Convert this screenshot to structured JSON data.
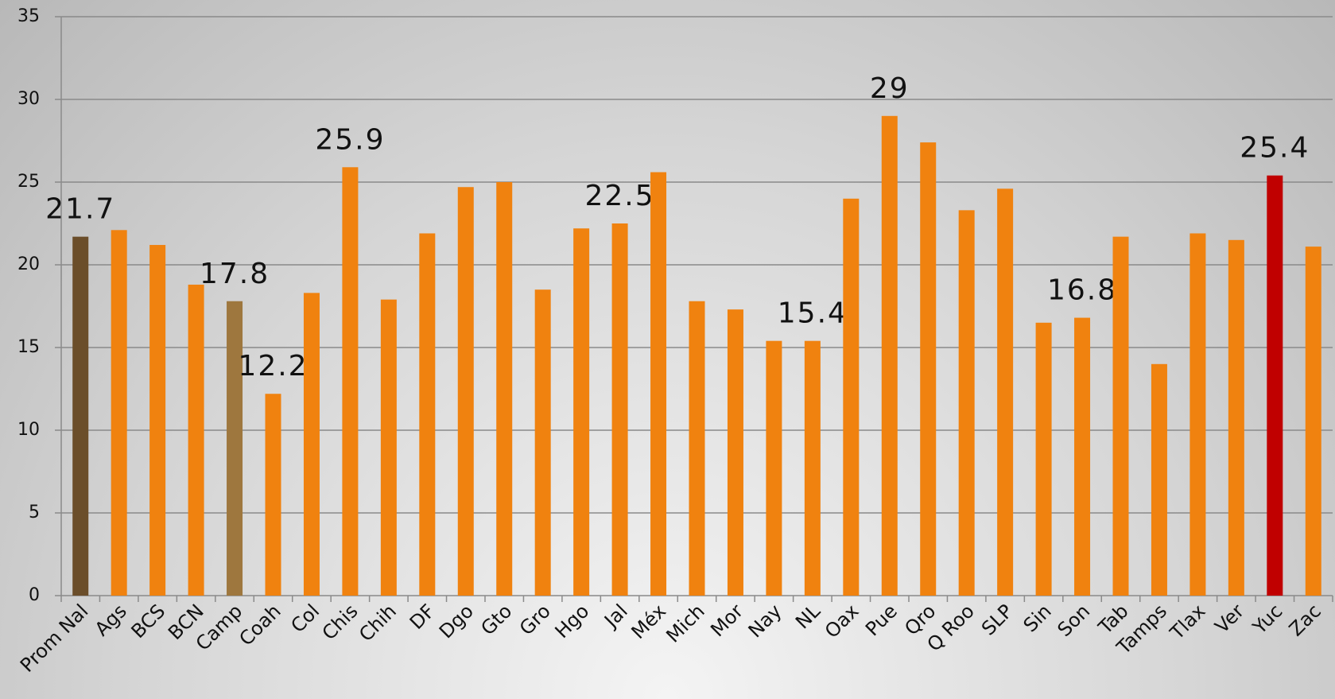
{
  "chart_data": {
    "type": "bar",
    "categories": [
      "Prom Nal",
      "Ags",
      "BCS",
      "BCN",
      "Camp",
      "Coah",
      "Col",
      "Chis",
      "Chih",
      "DF",
      "Dgo",
      "Gto",
      "Gro",
      "Hgo",
      "Jal",
      "Méx",
      "Mich",
      "Mor",
      "Nay",
      "NL",
      "Oax",
      "Pue",
      "Qro",
      "Q Roo",
      "SLP",
      "Sin",
      "Son",
      "Tab",
      "Tamps",
      "Tlax",
      "Ver",
      "Yuc",
      "Zac"
    ],
    "values": [
      21.7,
      22.1,
      21.2,
      18.8,
      17.8,
      12.2,
      18.3,
      25.9,
      17.9,
      21.9,
      24.7,
      25.0,
      18.5,
      22.2,
      22.5,
      25.6,
      17.8,
      17.3,
      15.4,
      15.4,
      24.0,
      29,
      27.4,
      23.3,
      24.6,
      16.5,
      16.8,
      21.7,
      14.0,
      21.9,
      21.5,
      25.4,
      21.1
    ],
    "value_labels": [
      "21.7",
      null,
      null,
      null,
      "17.8",
      "12.2",
      null,
      "25.9",
      null,
      null,
      null,
      null,
      null,
      null,
      "22.5",
      null,
      null,
      null,
      null,
      "15.4",
      null,
      "29",
      null,
      null,
      null,
      null,
      "16.8",
      null,
      null,
      null,
      null,
      "25.4",
      null
    ],
    "colors": [
      "#6b4e2a",
      "#f0820f",
      "#f0820f",
      "#f0820f",
      "#9e773e",
      "#f0820f",
      "#f0820f",
      "#f0820f",
      "#f0820f",
      "#f0820f",
      "#f0820f",
      "#f0820f",
      "#f0820f",
      "#f0820f",
      "#f0820f",
      "#f0820f",
      "#f0820f",
      "#f0820f",
      "#f0820f",
      "#f0820f",
      "#f0820f",
      "#f0820f",
      "#f0820f",
      "#f0820f",
      "#f0820f",
      "#f0820f",
      "#f0820f",
      "#f0820f",
      "#f0820f",
      "#f0820f",
      "#f0820f",
      "#c00000",
      "#f0820f"
    ],
    "ylim": [
      0,
      35
    ],
    "yticks": [
      0,
      5,
      10,
      15,
      20,
      25,
      30,
      35
    ],
    "grid": true
  }
}
